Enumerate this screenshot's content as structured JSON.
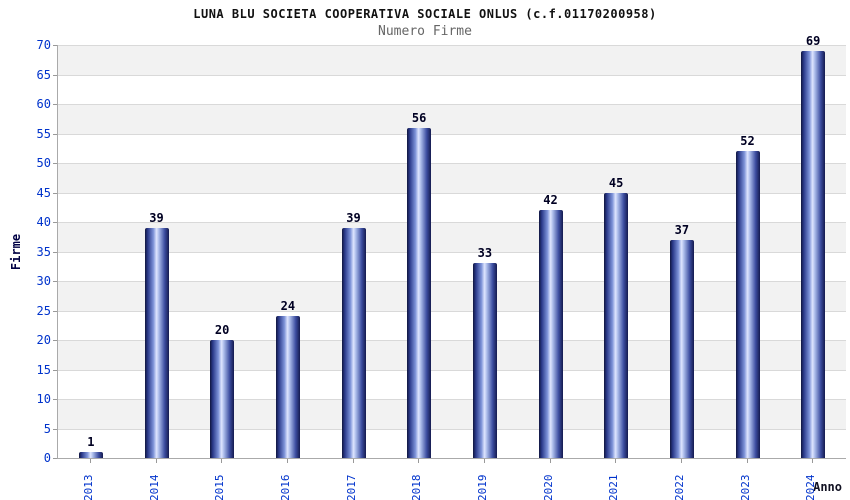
{
  "chart_data": {
    "type": "bar",
    "title": "LUNA BLU SOCIETA COOPERATIVA SOCIALE ONLUS (c.f.01170200958)",
    "subtitle": "Numero Firme",
    "xlabel": "Anno",
    "ylabel": "Firme",
    "categories": [
      "2013",
      "2014",
      "2015",
      "2016",
      "2017",
      "2018",
      "2019",
      "2020",
      "2021",
      "2022",
      "2023",
      "2024"
    ],
    "values": [
      1,
      39,
      20,
      24,
      39,
      56,
      33,
      42,
      45,
      37,
      52,
      69
    ],
    "ylim": [
      0,
      70
    ],
    "ytick_step": 5,
    "ytick_labels": [
      "0",
      "5",
      "10",
      "15",
      "20",
      "25",
      "30",
      "35",
      "40",
      "45",
      "50",
      "55",
      "60",
      "65",
      "70"
    ],
    "grid": true,
    "legend": "none",
    "colors": {
      "bar_dark": "#141a4e",
      "bar_mid": "#3c4da0",
      "bar_highlight": "#dfe6ff",
      "tick_label": "#0033cc",
      "value_label": "#000022",
      "gridline": "#d9d9d9",
      "band_alt": "#f2f2f2",
      "subtitle": "#666666",
      "title": "#111111"
    }
  }
}
